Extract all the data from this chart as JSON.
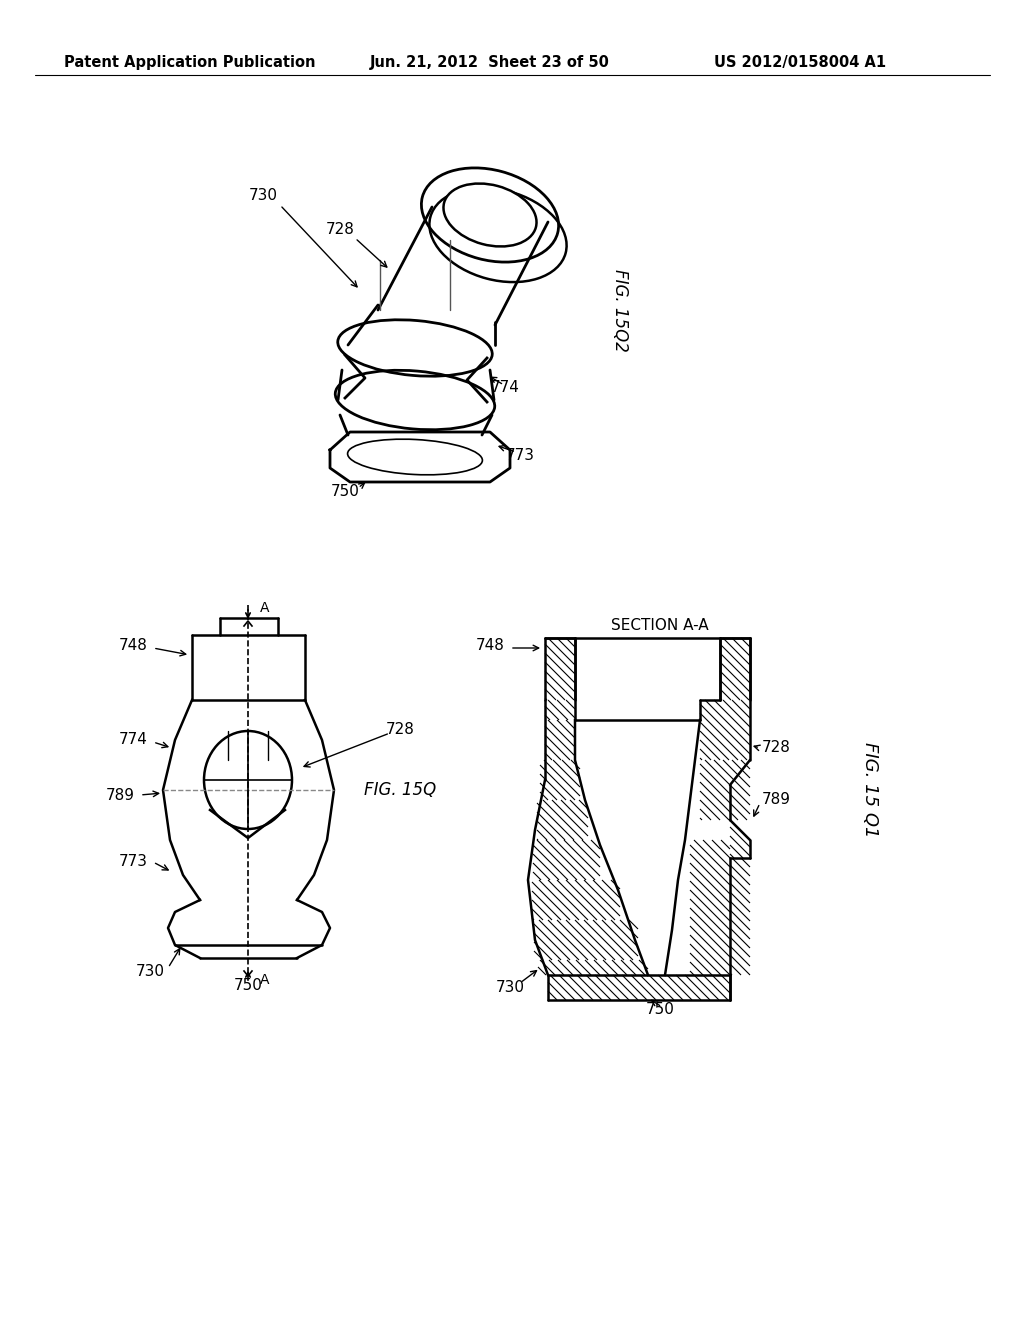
{
  "background_color": "#ffffff",
  "header_left": "Patent Application Publication",
  "header_center": "Jun. 21, 2012  Sheet 23 of 50",
  "header_right": "US 2012/0158004 A1"
}
